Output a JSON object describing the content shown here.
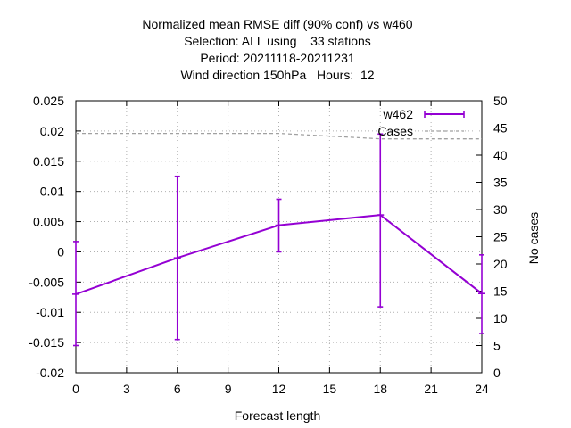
{
  "chart_data": {
    "type": "line",
    "title_lines": [
      "Normalized mean RMSE diff (90% conf) vs w460",
      "Selection: ALL using    33 stations",
      "Period: 20211118-20211231",
      "Wind direction 150hPa   Hours:  12"
    ],
    "xlabel": "Forecast length",
    "ylabel": "",
    "y2label": "No cases",
    "xlim": [
      0,
      24
    ],
    "ylim": [
      -0.02,
      0.025
    ],
    "y2lim": [
      0,
      50
    ],
    "xticks": [
      "0",
      "3",
      "6",
      "9",
      "12",
      "15",
      "18",
      "21",
      "24"
    ],
    "yticks": [
      "-0.02",
      "-0.015",
      "-0.01",
      "-0.005",
      "0",
      "0.005",
      "0.01",
      "0.015",
      "0.02",
      "0.025"
    ],
    "y2ticks": [
      "0",
      "5",
      "10",
      "15",
      "20",
      "25",
      "30",
      "35",
      "40",
      "45",
      "50"
    ],
    "grid": true,
    "legend_position": "top-right",
    "series": [
      {
        "name": "w462",
        "style": "linespoints-errorbars",
        "color": "#9400d3",
        "x": [
          0,
          6,
          12,
          18,
          24
        ],
        "y": [
          -0.007,
          -0.001,
          0.0044,
          0.0061,
          -0.0069
        ],
        "ylow": [
          -0.0155,
          -0.0145,
          0.0,
          -0.0091,
          -0.0135
        ],
        "yhigh": [
          0.0017,
          0.0125,
          0.0087,
          0.0195,
          -0.0005
        ]
      },
      {
        "name": "Cases",
        "style": "dashed",
        "axis": "y2",
        "color": "#a0a0a0",
        "x": [
          0,
          6,
          12,
          18,
          24
        ],
        "y": [
          44,
          44,
          44,
          43,
          43
        ]
      }
    ]
  }
}
